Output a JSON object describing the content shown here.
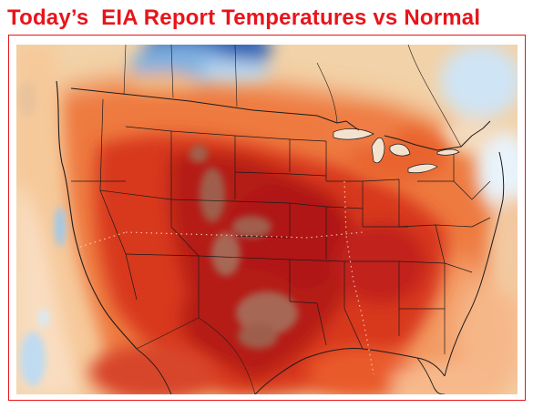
{
  "header": {
    "title": "Today’s  EIA Report Temperatures vs Normal"
  },
  "map": {
    "type": "temperature anomaly map",
    "region": "contiguous United States",
    "palette": {
      "much_below_normal": "#2f63b6",
      "below_normal": "#9fc8ea",
      "near_normal": "#eef6fb",
      "slightly_above": "#f7c58a",
      "above_normal": "#ee7a3f",
      "well_above": "#da3b20",
      "far_above": "#b51a14",
      "extreme_above": "#9b6a55"
    },
    "borders_color": "#1b1b1b"
  }
}
